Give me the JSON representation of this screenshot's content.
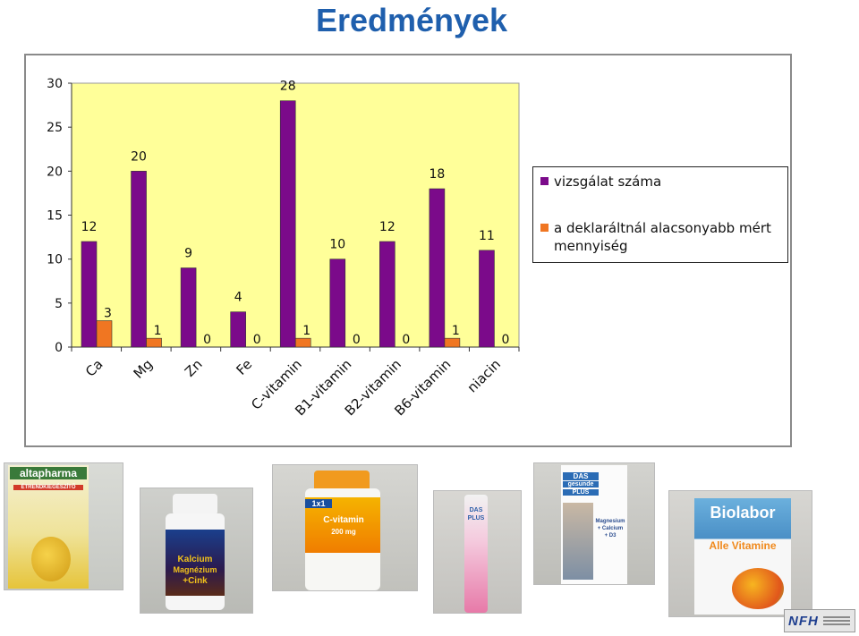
{
  "page": {
    "title": "Eredmények"
  },
  "colors": {
    "title": "#1f5fad",
    "plot_background": "#ffff99",
    "series1": "#7b0a8a",
    "series2": "#f07622"
  },
  "chart_data": {
    "type": "bar",
    "categories": [
      "Ca",
      "Mg",
      "Zn",
      "Fe",
      "C-vitamin",
      "B1-vitamin",
      "B2-vitamin",
      "B6-vitamin",
      "niacin"
    ],
    "series": [
      {
        "name": "vizsgálat száma",
        "values": [
          12,
          20,
          9,
          4,
          28,
          10,
          12,
          18,
          11
        ],
        "color": "#7b0a8a"
      },
      {
        "name": "a deklaráltnál alacsonyabb mért mennyiség",
        "values": [
          3,
          1,
          0,
          0,
          1,
          0,
          0,
          1,
          0
        ],
        "color": "#f07622"
      }
    ],
    "y_ticks": [
      "0",
      "5",
      "10",
      "15",
      "20",
      "25",
      "30"
    ],
    "ylim": [
      0,
      30
    ],
    "grid": false,
    "legend_position": "right",
    "data_labels": true
  },
  "photos": [
    {
      "name": "altapharma-box",
      "brand": "altapharma",
      "lines": [
        "ÉTRENDKIEGÉSZÍTŐ"
      ]
    },
    {
      "name": "kalcium-magnezium-cink-jar",
      "lines": [
        "Kalcium",
        "Magnézium",
        "+Cink"
      ]
    },
    {
      "name": "c-vitamin-jar",
      "brand": "1x1",
      "lines": [
        "C-vitamin",
        "200 mg"
      ]
    },
    {
      "name": "das-gesunde-plus-tube",
      "lines": [
        "DAS",
        "PLUS"
      ]
    },
    {
      "name": "das-gesunde-plus-box",
      "lines": [
        "DAS",
        "gesunde",
        "PLUS",
        "Magnesium",
        "+ Calcium",
        "+ D3"
      ]
    },
    {
      "name": "biolabor-box",
      "brand": "Biolabor",
      "lines": [
        "Alle Vitamine"
      ]
    }
  ],
  "footer": {
    "logo": "NFH"
  }
}
